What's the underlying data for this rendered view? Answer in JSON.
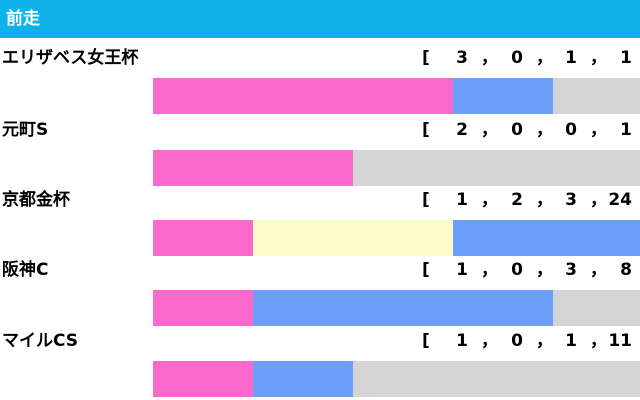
{
  "header": {
    "title": "前走"
  },
  "colors": {
    "first": "#fc69cd",
    "second": "#fdfcc9",
    "third": "#6b9ff9",
    "other": "#d4d4d4",
    "header_bg": "#0fb2ea"
  },
  "chart_data": {
    "type": "bar",
    "stacked": true,
    "orientation": "horizontal",
    "title": "",
    "categories": [
      "エリザベス女王杯",
      "元町S",
      "京都金杯",
      "阪神C",
      "マイルCS"
    ],
    "series": [
      {
        "values": [
          3,
          2,
          1,
          1,
          1
        ]
      },
      {
        "values": [
          0,
          0,
          2,
          0,
          0
        ]
      },
      {
        "values": [
          1,
          0,
          3,
          3,
          1
        ]
      },
      {
        "values": [
          1,
          1,
          24,
          8,
          11
        ]
      }
    ],
    "records": [
      {
        "open": "[",
        "sep": "，",
        "v": [
          "3",
          "0",
          "1",
          "1"
        ]
      },
      {
        "open": "[",
        "sep": "，",
        "v": [
          "2",
          "0",
          "0",
          "1"
        ]
      },
      {
        "open": "[",
        "sep": "，",
        "v": [
          "1",
          "2",
          "3",
          "24"
        ]
      },
      {
        "open": "[",
        "sep": "，",
        "v": [
          "1",
          "0",
          "3",
          "8"
        ]
      },
      {
        "open": "[",
        "sep": "，",
        "v": [
          "1",
          "0",
          "1",
          "11"
        ]
      }
    ]
  }
}
